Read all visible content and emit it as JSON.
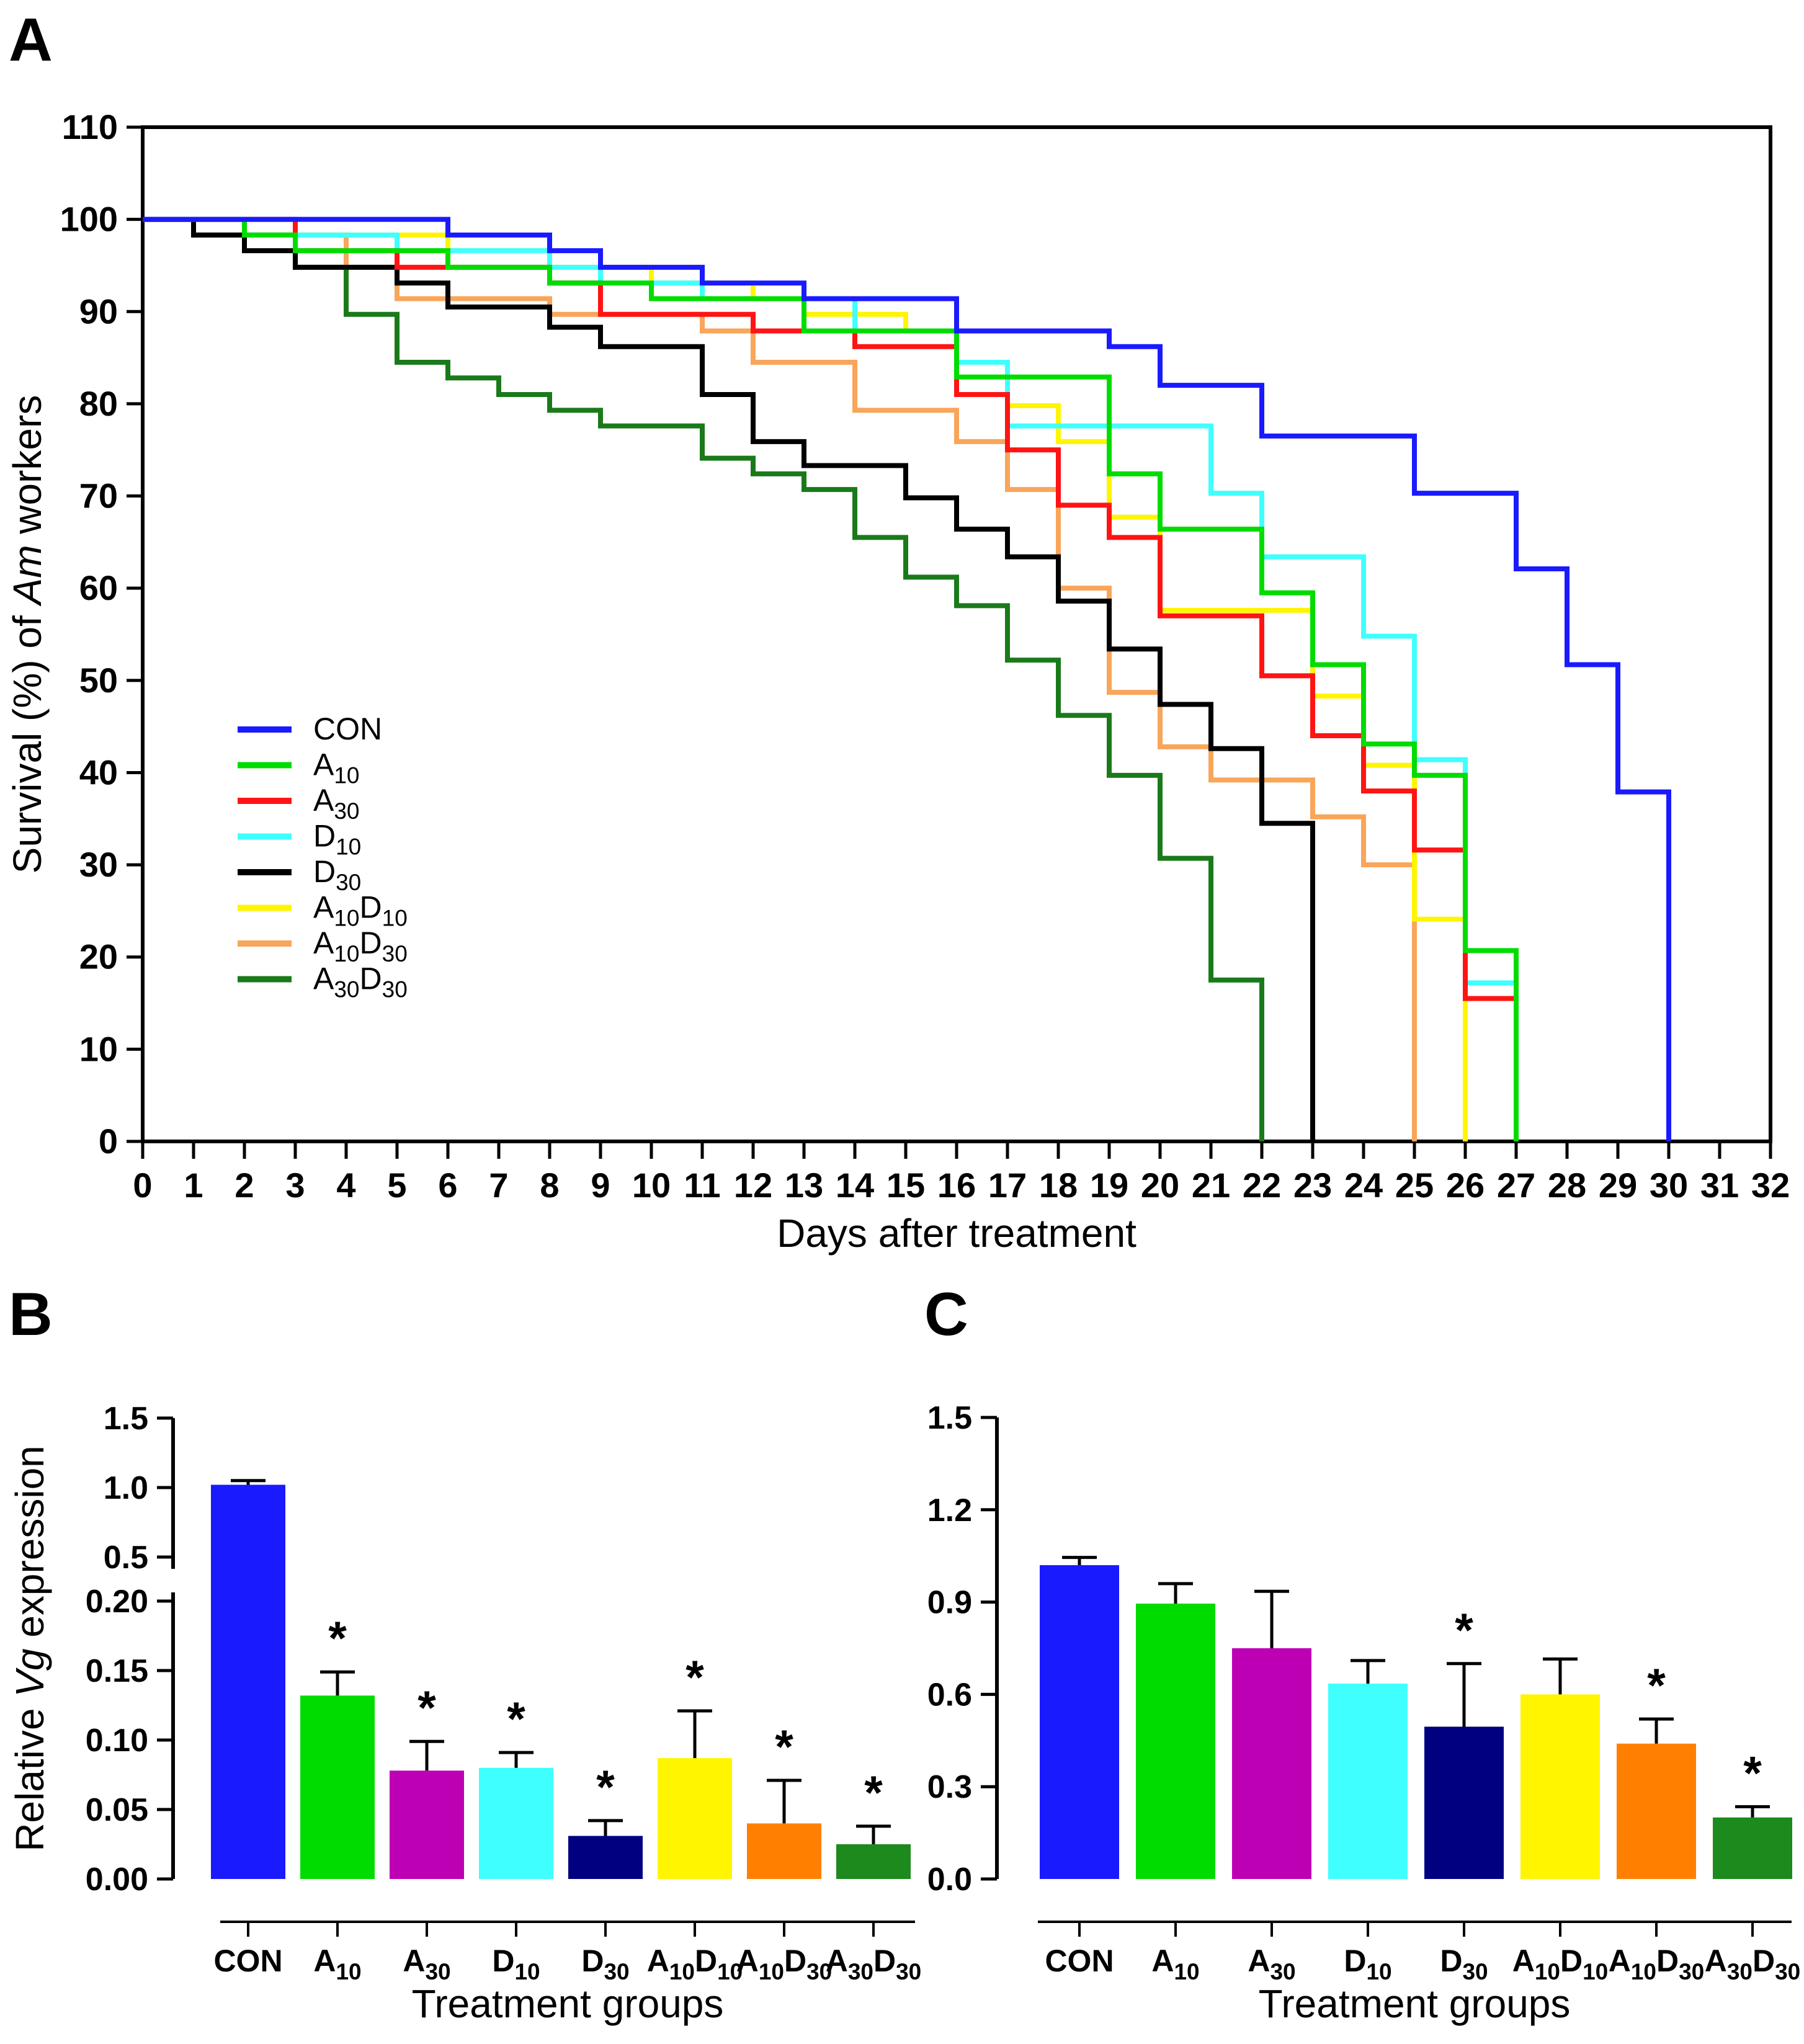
{
  "figure": {
    "panel_letters": [
      "A",
      "B",
      "C"
    ]
  },
  "chart_data": [
    {
      "panel": "A",
      "type": "line",
      "subtype": "kaplan-meier-step",
      "xlabel": "Days after treatment",
      "ylabel_text": "Survival (%) of Am workers",
      "ylabel_parts": [
        {
          "t": "Survival (%) of "
        },
        {
          "t": "Am",
          "italic": true
        },
        {
          "t": " workers"
        }
      ],
      "xlim": [
        0,
        32
      ],
      "x_tick_step": 1,
      "ylim": [
        0,
        110
      ],
      "y_tick_step": 10,
      "grid": false,
      "legend_position": "inside-left-middle",
      "series": [
        {
          "name": "CON",
          "label_parts": [
            {
              "t": "CON"
            }
          ],
          "color": "#1A1AFF",
          "steps": [
            [
              0,
              100
            ],
            [
              6,
              98.3
            ],
            [
              8,
              96.6
            ],
            [
              9,
              94.8
            ],
            [
              11,
              93.1
            ],
            [
              13,
              91.4
            ],
            [
              16,
              87.9
            ],
            [
              19,
              86.2
            ],
            [
              20,
              82.0
            ],
            [
              22,
              76.5
            ],
            [
              25,
              70.3
            ],
            [
              27,
              62.1
            ],
            [
              28,
              51.7
            ],
            [
              29,
              37.9
            ],
            [
              30,
              0
            ]
          ]
        },
        {
          "name": "A10",
          "label_parts": [
            {
              "t": "A"
            },
            {
              "s": "10"
            }
          ],
          "color": "#00DC00",
          "steps": [
            [
              0,
              100
            ],
            [
              2,
              98.3
            ],
            [
              3,
              96.6
            ],
            [
              6,
              94.8
            ],
            [
              8,
              93.1
            ],
            [
              10,
              91.4
            ],
            [
              13,
              87.9
            ],
            [
              16,
              82.9
            ],
            [
              19,
              72.4
            ],
            [
              20,
              66.4
            ],
            [
              22,
              59.5
            ],
            [
              23,
              51.7
            ],
            [
              24,
              43.1
            ],
            [
              25,
              39.7
            ],
            [
              26,
              20.7
            ],
            [
              27,
              0
            ]
          ]
        },
        {
          "name": "A30",
          "label_parts": [
            {
              "t": "A"
            },
            {
              "s": "30"
            }
          ],
          "color": "#FF1414",
          "steps": [
            [
              0,
              100
            ],
            [
              3,
              96.6
            ],
            [
              5,
              94.8
            ],
            [
              8,
              93.1
            ],
            [
              9,
              89.7
            ],
            [
              12,
              87.9
            ],
            [
              14,
              86.2
            ],
            [
              16,
              81.0
            ],
            [
              17,
              75.0
            ],
            [
              18,
              69.0
            ],
            [
              19,
              65.5
            ],
            [
              20,
              57.0
            ],
            [
              22,
              50.5
            ],
            [
              23,
              44.0
            ],
            [
              24,
              38.0
            ],
            [
              25,
              31.6
            ],
            [
              26,
              15.5
            ],
            [
              27,
              0
            ]
          ]
        },
        {
          "name": "D10",
          "label_parts": [
            {
              "t": "D"
            },
            {
              "s": "10"
            }
          ],
          "color": "#40FFFF",
          "steps": [
            [
              0,
              100
            ],
            [
              2,
              98.3
            ],
            [
              5,
              96.6
            ],
            [
              8,
              94.8
            ],
            [
              9,
              93.1
            ],
            [
              11,
              91.4
            ],
            [
              14,
              87.9
            ],
            [
              16,
              84.5
            ],
            [
              17,
              77.6
            ],
            [
              21,
              70.3
            ],
            [
              22,
              63.4
            ],
            [
              24,
              54.8
            ],
            [
              25,
              41.4
            ],
            [
              26,
              17.2
            ],
            [
              27,
              0
            ]
          ]
        },
        {
          "name": "D30",
          "label_parts": [
            {
              "t": "D"
            },
            {
              "s": "30"
            }
          ],
          "color": "#000000",
          "steps": [
            [
              0,
              100
            ],
            [
              1,
              98.3
            ],
            [
              2,
              96.6
            ],
            [
              3,
              94.8
            ],
            [
              5,
              93.1
            ],
            [
              6,
              90.5
            ],
            [
              8,
              88.3
            ],
            [
              9,
              86.2
            ],
            [
              11,
              81.0
            ],
            [
              12,
              75.9
            ],
            [
              13,
              73.3
            ],
            [
              15,
              69.8
            ],
            [
              16,
              66.4
            ],
            [
              17,
              63.4
            ],
            [
              18,
              58.6
            ],
            [
              19,
              53.4
            ],
            [
              20,
              47.4
            ],
            [
              21,
              42.6
            ],
            [
              22,
              34.5
            ],
            [
              23,
              0
            ]
          ]
        },
        {
          "name": "A10D10",
          "label_parts": [
            {
              "t": "A"
            },
            {
              "s": "10"
            },
            {
              "t": "D"
            },
            {
              "s": "10"
            }
          ],
          "color": "#FFF500",
          "steps": [
            [
              0,
              100
            ],
            [
              3,
              98.3
            ],
            [
              6,
              96.6
            ],
            [
              8,
              94.8
            ],
            [
              10,
              93.1
            ],
            [
              12,
              91.4
            ],
            [
              13,
              89.7
            ],
            [
              15,
              87.9
            ],
            [
              16,
              84.5
            ],
            [
              17,
              79.8
            ],
            [
              18,
              75.9
            ],
            [
              19,
              67.7
            ],
            [
              20,
              57.6
            ],
            [
              23,
              48.3
            ],
            [
              24,
              40.8
            ],
            [
              25,
              24.1
            ],
            [
              26,
              0
            ]
          ]
        },
        {
          "name": "A10D30",
          "label_parts": [
            {
              "t": "A"
            },
            {
              "s": "10"
            },
            {
              "t": "D"
            },
            {
              "s": "30"
            }
          ],
          "color": "#F9A55A",
          "steps": [
            [
              0,
              100
            ],
            [
              2,
              98.3
            ],
            [
              4,
              94.8
            ],
            [
              5,
              91.4
            ],
            [
              8,
              89.7
            ],
            [
              11,
              87.9
            ],
            [
              12,
              84.5
            ],
            [
              14,
              79.3
            ],
            [
              16,
              75.9
            ],
            [
              17,
              70.7
            ],
            [
              18,
              60.0
            ],
            [
              19,
              48.7
            ],
            [
              20,
              42.8
            ],
            [
              21,
              39.2
            ],
            [
              23,
              35.2
            ],
            [
              24,
              30.0
            ],
            [
              25,
              0
            ]
          ]
        },
        {
          "name": "A30D30",
          "label_parts": [
            {
              "t": "A"
            },
            {
              "s": "30"
            },
            {
              "t": "D"
            },
            {
              "s": "30"
            }
          ],
          "color": "#1A7A1A",
          "steps": [
            [
              0,
              100
            ],
            [
              1,
              98.3
            ],
            [
              3,
              94.8
            ],
            [
              4,
              89.7
            ],
            [
              5,
              84.5
            ],
            [
              6,
              82.8
            ],
            [
              7,
              81.0
            ],
            [
              8,
              79.3
            ],
            [
              9,
              77.6
            ],
            [
              11,
              74.1
            ],
            [
              12,
              72.4
            ],
            [
              13,
              70.7
            ],
            [
              14,
              65.5
            ],
            [
              15,
              61.2
            ],
            [
              16,
              58.1
            ],
            [
              17,
              52.2
            ],
            [
              18,
              46.2
            ],
            [
              19,
              39.7
            ],
            [
              20,
              30.7
            ],
            [
              21,
              17.5
            ],
            [
              22,
              0
            ]
          ]
        }
      ]
    },
    {
      "panel": "B",
      "type": "bar",
      "xlabel": "Treatment groups",
      "ylabel_text": "Relative Vg expression",
      "ylabel_parts": [
        {
          "t": "Relative "
        },
        {
          "t": "Vg",
          "italic": true
        },
        {
          "t": " expression"
        }
      ],
      "broken_axis": {
        "lower_range": [
          0,
          0.2
        ],
        "lower_tick_labels": [
          "0.00",
          "0.05",
          "0.10",
          "0.15",
          "0.20"
        ],
        "lower_tick_values": [
          0,
          0.05,
          0.1,
          0.15,
          0.2
        ],
        "upper_range": [
          0.5,
          1.5
        ],
        "upper_tick_labels": [
          "0.5",
          "1.0",
          "1.5"
        ],
        "upper_tick_values": [
          0.5,
          1.0,
          1.5
        ]
      },
      "categories": [
        "CON",
        "A10",
        "A30",
        "D10",
        "D30",
        "A10D10",
        "A10D30",
        "A30D30"
      ],
      "bars": [
        {
          "name": "CON",
          "label_parts": [
            {
              "t": "CON"
            }
          ],
          "color": "#1A1AFF",
          "value": 1.02,
          "error_top": 1.05,
          "significant": false,
          "crosses_break": true
        },
        {
          "name": "A10",
          "label_parts": [
            {
              "t": "A"
            },
            {
              "s": "10"
            }
          ],
          "color": "#00DC00",
          "value": 0.132,
          "error_top": 0.149,
          "significant": true
        },
        {
          "name": "A30",
          "label_parts": [
            {
              "t": "A"
            },
            {
              "s": "30"
            }
          ],
          "color": "#BE00B4",
          "value": 0.078,
          "error_top": 0.099,
          "significant": true
        },
        {
          "name": "D10",
          "label_parts": [
            {
              "t": "D"
            },
            {
              "s": "10"
            }
          ],
          "color": "#40FFFF",
          "value": 0.08,
          "error_top": 0.091,
          "significant": true
        },
        {
          "name": "D30",
          "label_parts": [
            {
              "t": "D"
            },
            {
              "s": "30"
            }
          ],
          "color": "#000080",
          "value": 0.031,
          "error_top": 0.042,
          "significant": true
        },
        {
          "name": "A10D10",
          "label_parts": [
            {
              "t": "A"
            },
            {
              "s": "10"
            },
            {
              "t": "D"
            },
            {
              "s": "10"
            }
          ],
          "color": "#FFF500",
          "value": 0.087,
          "error_top": 0.121,
          "significant": true
        },
        {
          "name": "A10D30",
          "label_parts": [
            {
              "t": "A"
            },
            {
              "s": "10"
            },
            {
              "t": "D"
            },
            {
              "s": "30"
            }
          ],
          "color": "#FF8000",
          "value": 0.04,
          "error_top": 0.071,
          "significant": true
        },
        {
          "name": "A30D30",
          "label_parts": [
            {
              "t": "A"
            },
            {
              "s": "30"
            },
            {
              "t": "D"
            },
            {
              "s": "30"
            }
          ],
          "color": "#1C8A1C",
          "value": 0.025,
          "error_top": 0.038,
          "significant": true
        }
      ],
      "significance_symbol": "*"
    },
    {
      "panel": "C",
      "type": "bar",
      "xlabel": "Treatment groups",
      "ylabel_text": "",
      "ylim": [
        0,
        1.5
      ],
      "y_tick_labels": [
        "0.0",
        "0.3",
        "0.6",
        "0.9",
        "1.2",
        "1.5"
      ],
      "y_tick_values": [
        0,
        0.3,
        0.6,
        0.9,
        1.2,
        1.5
      ],
      "categories": [
        "CON",
        "A10",
        "A30",
        "D10",
        "D30",
        "A10D10",
        "A10D30",
        "A30D30"
      ],
      "bars": [
        {
          "name": "CON",
          "label_parts": [
            {
              "t": "CON"
            }
          ],
          "color": "#1A1AFF",
          "value": 1.02,
          "error_top": 1.045,
          "significant": false
        },
        {
          "name": "A10",
          "label_parts": [
            {
              "t": "A"
            },
            {
              "s": "10"
            }
          ],
          "color": "#00DC00",
          "value": 0.895,
          "error_top": 0.96,
          "significant": false
        },
        {
          "name": "A30",
          "label_parts": [
            {
              "t": "A"
            },
            {
              "s": "30"
            }
          ],
          "color": "#BE00B4",
          "value": 0.75,
          "error_top": 0.935,
          "significant": false
        },
        {
          "name": "D10",
          "label_parts": [
            {
              "t": "D"
            },
            {
              "s": "10"
            }
          ],
          "color": "#40FFFF",
          "value": 0.635,
          "error_top": 0.71,
          "significant": false
        },
        {
          "name": "D30",
          "label_parts": [
            {
              "t": "D"
            },
            {
              "s": "30"
            }
          ],
          "color": "#000080",
          "value": 0.495,
          "error_top": 0.7,
          "significant": true
        },
        {
          "name": "A10D10",
          "label_parts": [
            {
              "t": "A"
            },
            {
              "s": "10"
            },
            {
              "t": "D"
            },
            {
              "s": "10"
            }
          ],
          "color": "#FFF500",
          "value": 0.6,
          "error_top": 0.715,
          "significant": false
        },
        {
          "name": "A10D30",
          "label_parts": [
            {
              "t": "A"
            },
            {
              "s": "10"
            },
            {
              "t": "D"
            },
            {
              "s": "30"
            }
          ],
          "color": "#FF8000",
          "value": 0.44,
          "error_top": 0.52,
          "significant": true
        },
        {
          "name": "A30D30",
          "label_parts": [
            {
              "t": "A"
            },
            {
              "s": "30"
            },
            {
              "t": "D"
            },
            {
              "s": "30"
            }
          ],
          "color": "#1C8A1C",
          "value": 0.2,
          "error_top": 0.235,
          "significant": true
        }
      ],
      "significance_symbol": "*"
    }
  ]
}
